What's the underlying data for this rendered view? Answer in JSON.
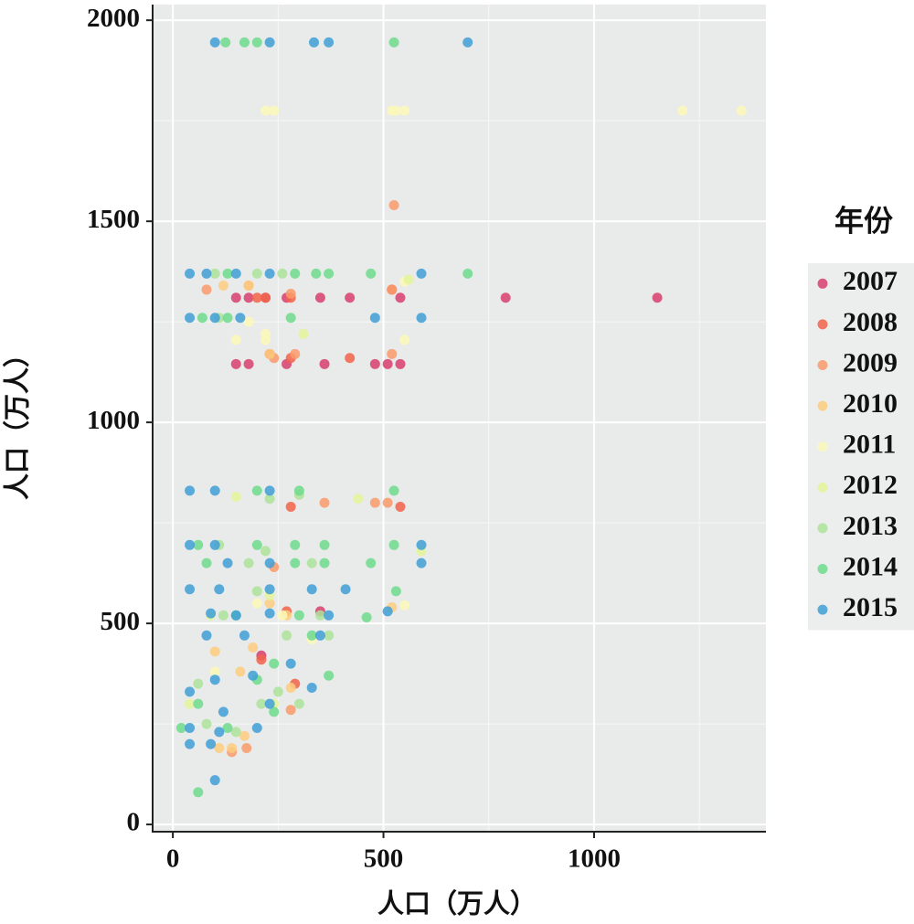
{
  "chart_data": {
    "type": "scatter",
    "x_label": "人口（万人）",
    "y_label": "人口（万人）",
    "legend_title": "年份",
    "xlim": [
      -48,
      1408
    ],
    "ylim": [
      -18,
      2039
    ],
    "xticks": [
      0,
      500,
      1000
    ],
    "yticks": [
      0,
      500,
      1000,
      1500,
      2000
    ],
    "xminor": [
      250,
      750,
      1250
    ],
    "yminor": [
      250,
      750,
      1250,
      1750
    ],
    "grid": true,
    "legend": "right",
    "series": [
      {
        "name": "2007",
        "color": "#d8406e",
        "x": [
          150,
          180,
          220,
          270,
          350,
          420,
          540,
          790,
          1150,
          150,
          180,
          270,
          360,
          480,
          510,
          540,
          350,
          210
        ],
        "y": [
          1310,
          1310,
          1310,
          1310,
          1310,
          1310,
          1310,
          1310,
          1310,
          1145,
          1145,
          1145,
          1145,
          1145,
          1145,
          1145,
          530,
          420
        ]
      },
      {
        "name": "2008",
        "color": "#f2634a",
        "x": [
          200,
          220,
          280,
          230,
          280,
          420,
          280,
          540,
          270,
          210,
          520,
          290
        ],
        "y": [
          1310,
          1310,
          1310,
          1170,
          1160,
          1160,
          790,
          790,
          530,
          410,
          1330,
          350
        ]
      },
      {
        "name": "2009",
        "color": "#f99a6b",
        "x": [
          80,
          180,
          280,
          520,
          240,
          290,
          525,
          520,
          360,
          480,
          510,
          175,
          140,
          280,
          240
        ],
        "y": [
          1330,
          1340,
          1320,
          1330,
          1160,
          1170,
          1540,
          1170,
          800,
          800,
          800,
          190,
          180,
          285,
          640
        ]
      },
      {
        "name": "2010",
        "color": "#fdcc7e",
        "x": [
          180,
          120,
          230,
          190,
          100,
          160,
          170,
          110,
          140,
          230,
          270,
          520,
          280
        ],
        "y": [
          1340,
          1340,
          1170,
          440,
          430,
          380,
          220,
          190,
          190,
          550,
          520,
          540,
          340
        ]
      },
      {
        "name": "2011",
        "color": "#fbf8b8",
        "x": [
          220,
          240,
          520,
          530,
          550,
          1210,
          1350,
          150,
          220,
          550,
          550,
          260,
          550,
          180,
          220,
          330,
          200,
          100
        ],
        "y": [
          1775,
          1775,
          1775,
          1775,
          1775,
          1775,
          1775,
          1205,
          1205,
          1205,
          1350,
          520,
          545,
          1250,
          1220,
          460,
          550,
          380
        ]
      },
      {
        "name": "2012",
        "color": "#e3f59a",
        "x": [
          150,
          440,
          590,
          230,
          90,
          240,
          40,
          560,
          310
        ],
        "y": [
          815,
          810,
          680,
          570,
          520,
          300,
          300,
          1355,
          1220
        ]
      },
      {
        "name": "2013",
        "color": "#ade39a",
        "x": [
          100,
          200,
          260,
          110,
          230,
          300,
          110,
          180,
          220,
          330,
          200,
          370,
          120,
          350,
          270,
          210,
          80,
          150,
          250,
          300,
          60
        ],
        "y": [
          1370,
          1370,
          1370,
          1260,
          810,
          820,
          695,
          650,
          680,
          650,
          580,
          470,
          520,
          520,
          470,
          300,
          250,
          230,
          330,
          300,
          350
        ]
      },
      {
        "name": "2014",
        "color": "#6fdb8c",
        "x": [
          125,
          170,
          200,
          525,
          130,
          290,
          340,
          370,
          470,
          700,
          70,
          130,
          280,
          200,
          300,
          525,
          60,
          200,
          290,
          360,
          525,
          80,
          290,
          360,
          470,
          150,
          300,
          460,
          530,
          330,
          200,
          370,
          60,
          240,
          20,
          130,
          60,
          240
        ],
        "y": [
          1945,
          1945,
          1945,
          1945,
          1370,
          1370,
          1370,
          1370,
          1370,
          1370,
          1260,
          1260,
          1260,
          830,
          830,
          830,
          695,
          695,
          695,
          695,
          695,
          650,
          650,
          650,
          650,
          520,
          520,
          515,
          580,
          470,
          360,
          370,
          300,
          280,
          240,
          240,
          80,
          400
        ]
      },
      {
        "name": "2015",
        "color": "#3f9fd6",
        "x": [
          100,
          230,
          335,
          370,
          700,
          40,
          80,
          150,
          230,
          590,
          40,
          100,
          160,
          480,
          590,
          40,
          100,
          230,
          40,
          100,
          590,
          590,
          130,
          230,
          40,
          110,
          230,
          330,
          410,
          90,
          150,
          230,
          370,
          510,
          80,
          170,
          350,
          40,
          100,
          190,
          230,
          330,
          40,
          110,
          200,
          40,
          90,
          100,
          280,
          120
        ],
        "y": [
          1945,
          1945,
          1945,
          1945,
          1945,
          1370,
          1370,
          1370,
          1370,
          1370,
          1260,
          1260,
          1260,
          1260,
          1260,
          830,
          830,
          830,
          695,
          695,
          695,
          650,
          650,
          650,
          585,
          585,
          585,
          585,
          585,
          525,
          520,
          525,
          520,
          530,
          470,
          470,
          470,
          330,
          360,
          370,
          300,
          340,
          240,
          230,
          240,
          200,
          200,
          110,
          400,
          280
        ]
      }
    ]
  }
}
